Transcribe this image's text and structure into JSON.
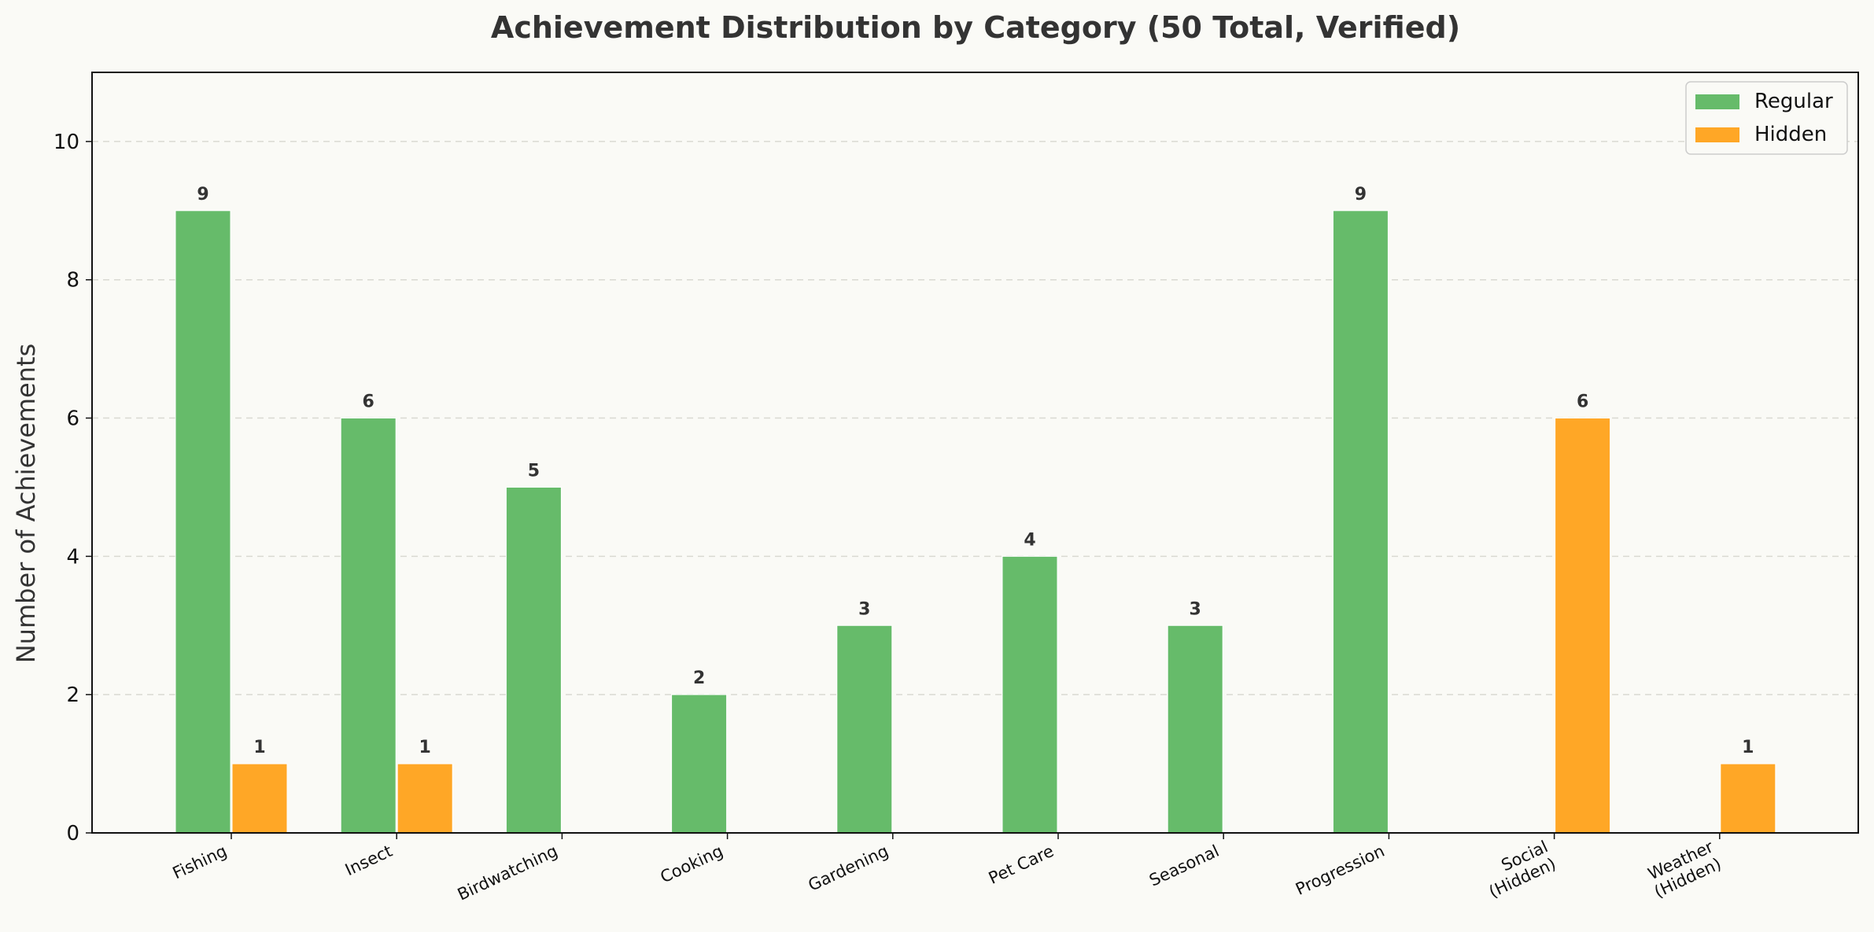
{
  "chart_data": {
    "type": "bar",
    "title": "Achievement Distribution by Category (50 Total, Verified)",
    "xlabel": "",
    "ylabel": "Number of Achievements",
    "ylim": [
      0,
      11
    ],
    "yticks": [
      0,
      2,
      4,
      6,
      8,
      10
    ],
    "grid": "y-dashed",
    "legend_position": "top-right",
    "categories": [
      [
        "Fishing"
      ],
      [
        "Insect"
      ],
      [
        "Birdwatching"
      ],
      [
        "Cooking"
      ],
      [
        "Gardening"
      ],
      [
        "Pet Care"
      ],
      [
        "Seasonal"
      ],
      [
        "Progression"
      ],
      [
        "Social",
        "(Hidden)"
      ],
      [
        "Weather",
        "(Hidden)"
      ]
    ],
    "series": [
      {
        "name": "Regular",
        "color": "#66bb6a",
        "values": [
          9,
          6,
          5,
          2,
          3,
          4,
          3,
          9,
          0,
          0
        ]
      },
      {
        "name": "Hidden",
        "color": "#ffa726",
        "values": [
          1,
          1,
          0,
          0,
          0,
          0,
          0,
          0,
          6,
          1
        ]
      }
    ]
  }
}
